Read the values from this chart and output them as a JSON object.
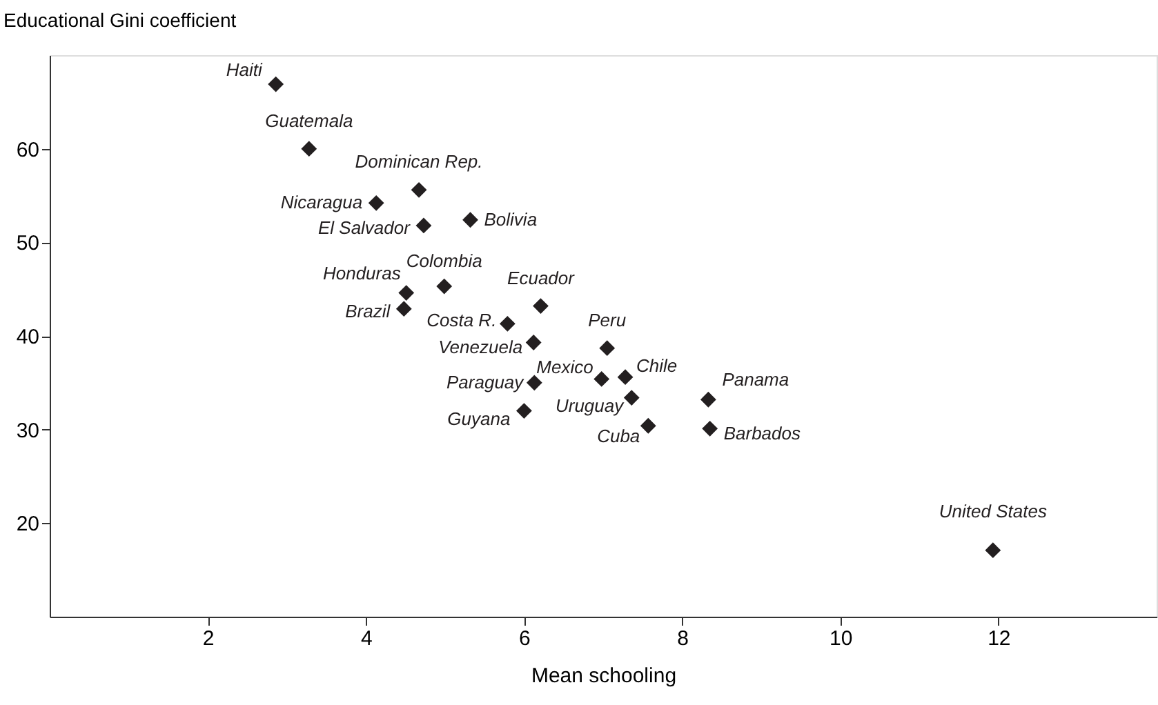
{
  "chart_data": {
    "type": "scatter",
    "xlabel": "Mean schooling",
    "ylabel": "Educational Gini coefficient",
    "x": [
      2.86,
      3.28,
      4.67,
      4.13,
      4.73,
      5.32,
      4.51,
      4.48,
      4.99,
      6.21,
      5.79,
      6.12,
      6.13,
      6.0,
      7.05,
      6.98,
      7.28,
      7.36,
      7.57,
      8.33,
      8.35,
      11.93
    ],
    "series": [
      {
        "color": "#231f20",
        "values": [
          66.9,
          60.0,
          55.6,
          54.2,
          51.8,
          52.4,
          44.6,
          42.9,
          45.3,
          43.2,
          41.3,
          39.3,
          35.0,
          32.0,
          38.7,
          35.4,
          35.6,
          33.4,
          30.4,
          33.2,
          30.1,
          17.1
        ]
      }
    ],
    "annotations": [
      {
        "text": "Haiti",
        "x": 2.86,
        "y": 66.9
      },
      {
        "text": "Guatemala",
        "x": 3.28,
        "y": 60.0
      },
      {
        "text": "Dominican Rep.",
        "x": 4.67,
        "y": 55.6
      },
      {
        "text": "Nicaragua",
        "x": 4.13,
        "y": 54.2
      },
      {
        "text": "El Salvador",
        "x": 4.73,
        "y": 51.8
      },
      {
        "text": "Bolivia",
        "x": 5.32,
        "y": 52.4
      },
      {
        "text": "Honduras",
        "x": 4.51,
        "y": 44.6
      },
      {
        "text": "Brazil",
        "x": 4.48,
        "y": 42.9
      },
      {
        "text": "Colombia",
        "x": 4.99,
        "y": 45.3
      },
      {
        "text": "Ecuador",
        "x": 6.21,
        "y": 43.2
      },
      {
        "text": "Costa R.",
        "x": 5.79,
        "y": 41.3
      },
      {
        "text": "Venezuela",
        "x": 6.12,
        "y": 39.3
      },
      {
        "text": "Paraguay",
        "x": 6.13,
        "y": 35.0
      },
      {
        "text": "Guyana",
        "x": 6.0,
        "y": 32.0
      },
      {
        "text": "Peru",
        "x": 7.05,
        "y": 38.7
      },
      {
        "text": "Mexico",
        "x": 6.98,
        "y": 35.4
      },
      {
        "text": "Chile",
        "x": 7.28,
        "y": 35.6
      },
      {
        "text": "Uruguay",
        "x": 7.36,
        "y": 33.4
      },
      {
        "text": "Cuba",
        "x": 7.57,
        "y": 30.4
      },
      {
        "text": "Panama",
        "x": 8.33,
        "y": 33.2
      },
      {
        "text": "Barbados",
        "x": 8.35,
        "y": 30.1
      },
      {
        "text": "United States",
        "x": 11.93,
        "y": 17.1
      }
    ],
    "xlim": [
      0,
      14
    ],
    "xticks": [
      2,
      4,
      6,
      8,
      10,
      12
    ],
    "ylim": [
      10,
      70
    ],
    "yticks": [
      20,
      30,
      40,
      50,
      60
    ],
    "marker": "diamond",
    "grid": false
  }
}
